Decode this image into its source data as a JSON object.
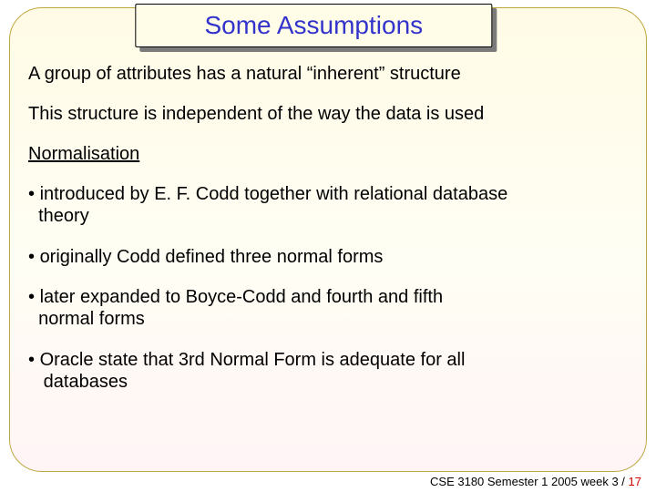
{
  "slide": {
    "title": "Some Assumptions",
    "title_color": "#3333cc",
    "title_fontsize": 28,
    "title_box_bg": "#fffde8",
    "title_box_border": "#000000",
    "title_shadow": "#7b7b7b",
    "border_color": "#c0a840",
    "border_radius": 36,
    "bg_gradient_top": "#fffbe6",
    "bg_gradient_mid": "#fffef4",
    "bg_gradient_bottom": "#fff4f6",
    "body_fontsize": 20,
    "body_color": "#000000",
    "line1": "A group of attributes has a natural “inherent” structure",
    "line2": "This structure is independent of the way the data is used",
    "section": "Normalisation",
    "bullets": [
      "introduced by E. F.  Codd together with relational database theory",
      "originally Codd defined three normal forms",
      "later expanded to Boyce-Codd and fourth and fifth normal forms",
      "Oracle state that 3rd Normal Form is adequate for all databases"
    ]
  },
  "footer": {
    "left": "CSE 3180 Semester 1 2005  week 3 /",
    "page": " 17",
    "fontsize": 13,
    "text_color": "#000000",
    "page_color": "#d00000"
  }
}
